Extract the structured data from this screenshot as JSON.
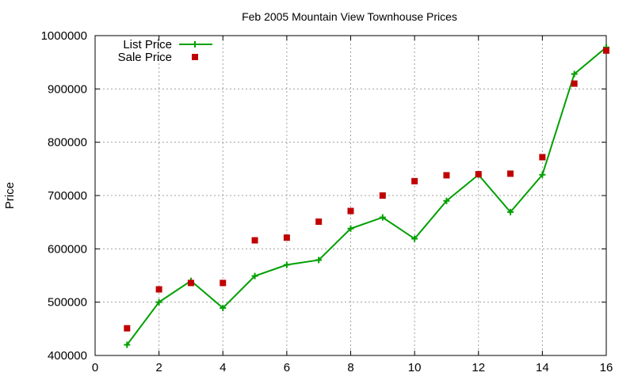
{
  "chart_data": {
    "type": "line",
    "title": "Feb 2005 Mountain View Townhouse Prices",
    "xlabel": "",
    "ylabel": "Price",
    "xlim": [
      0,
      16
    ],
    "ylim": [
      400000,
      1000000
    ],
    "xticks": [
      0,
      2,
      4,
      6,
      8,
      10,
      12,
      14,
      16
    ],
    "yticks": [
      400000,
      500000,
      600000,
      700000,
      800000,
      900000,
      1000000
    ],
    "grid": true,
    "legend_position": "top-left",
    "series": [
      {
        "name": "List Price",
        "style": "line+cross",
        "color": "#00a000",
        "x": [
          1,
          2,
          3,
          4,
          5,
          6,
          7,
          8,
          9,
          10,
          11,
          12,
          13,
          14,
          15,
          16
        ],
        "y": [
          420000,
          500000,
          540000,
          489000,
          549000,
          570000,
          579000,
          638000,
          659000,
          619000,
          690000,
          739000,
          669000,
          739000,
          928000,
          978000
        ]
      },
      {
        "name": "Sale Price",
        "style": "square",
        "color": "#c00000",
        "x": [
          1,
          2,
          3,
          4,
          5,
          6,
          7,
          8,
          9,
          10,
          11,
          12,
          13,
          14,
          15,
          16
        ],
        "y": [
          451000,
          524000,
          536000,
          536000,
          616000,
          621000,
          651000,
          671000,
          700000,
          727000,
          738000,
          740000,
          741000,
          772000,
          910000,
          972000
        ]
      }
    ]
  }
}
